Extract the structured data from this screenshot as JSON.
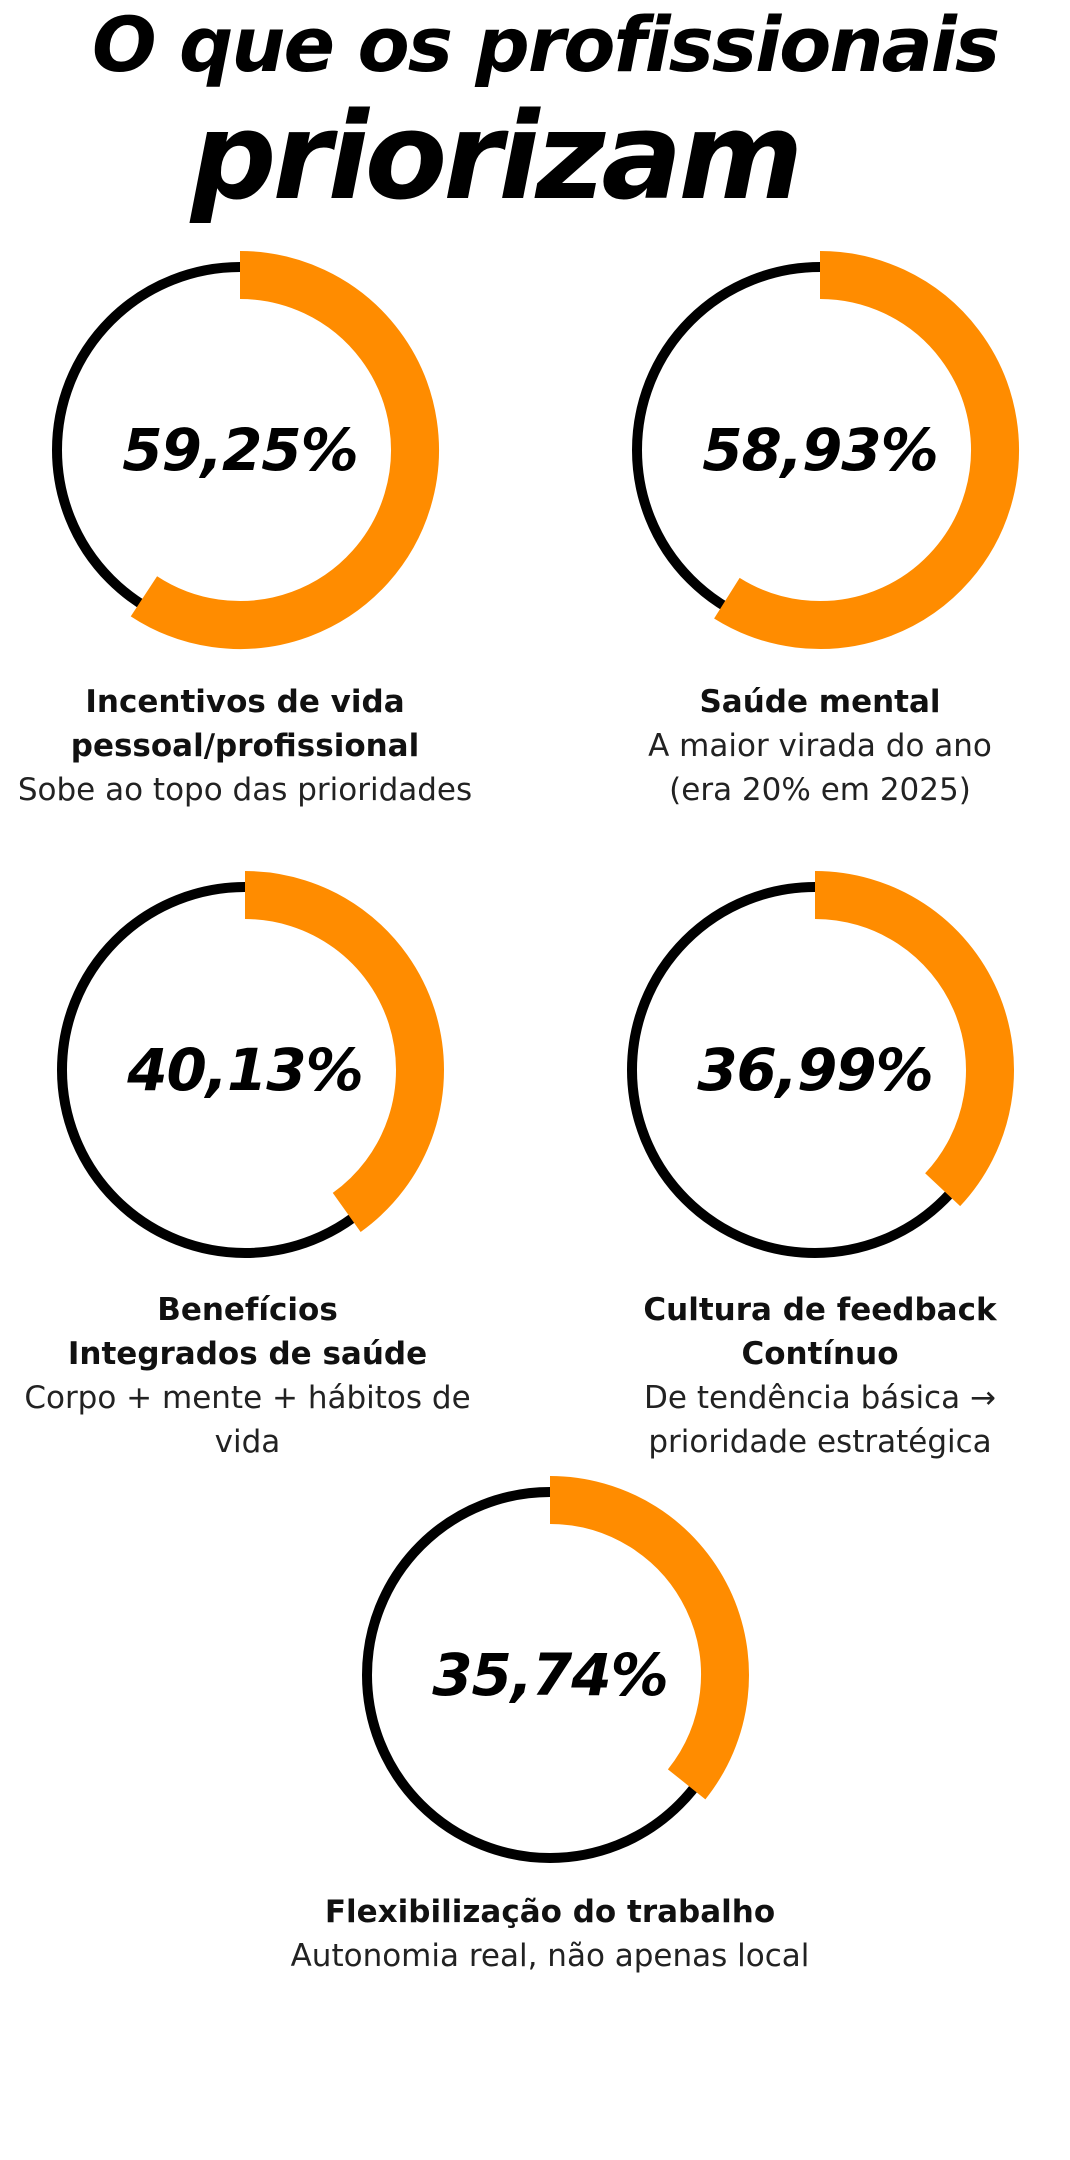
{
  "title_line1": "O que os profissionais",
  "title_line2": "priorizam",
  "colors": {
    "progress": "#FF8C00",
    "track": "#000000",
    "background": "#FFFFFF"
  },
  "chart_data": {
    "type": "donut",
    "items": [
      {
        "value": 59.25,
        "value_label": "59,25%",
        "label_lines": [
          "Incentivos de vida",
          "pessoal/profissional"
        ],
        "description_lines": [
          "Sobe ao topo das prioridades"
        ]
      },
      {
        "value": 58.93,
        "value_label": "58,93%",
        "label_lines": [
          "Saúde mental"
        ],
        "description_lines": [
          "A maior virada do ano",
          "(era 20% em 2025)"
        ]
      },
      {
        "value": 40.13,
        "value_label": "40,13%",
        "label_lines": [
          "Benefícios",
          "Integrados de saúde"
        ],
        "description_lines": [
          "Corpo + mente + hábitos de vida"
        ]
      },
      {
        "value": 36.99,
        "value_label": "36,99%",
        "label_lines": [
          "Cultura de feedback Contínuo"
        ],
        "description_lines": [
          "De tendência básica →",
          "prioridade estratégica"
        ]
      },
      {
        "value": 35.74,
        "value_label": "35,74%",
        "label_lines": [
          "Flexibilização do trabalho"
        ],
        "description_lines": [
          "Autonomia real, não apenas local"
        ]
      }
    ]
  }
}
